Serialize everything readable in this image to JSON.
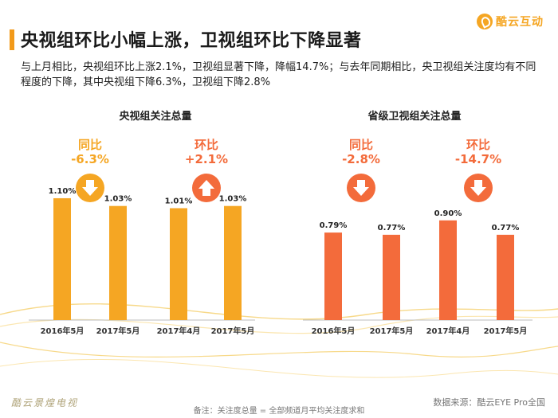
{
  "header": {
    "title": "央视组环比小幅上涨，卫视组环比下降显著",
    "brand": "酷云互动"
  },
  "subtitle": "与上月相比，央视组环比上涨2.1%，卫视组显著下降，降幅14.7%；与去年同期相比，央卫视组关注度均有不同程度的下降，其中央视组下降6.3%，卫视组下降2.8%",
  "panels": [
    {
      "title": "央视组关注总量",
      "changes": [
        {
          "label": "同比",
          "value": "-6.3%",
          "direction": "down",
          "icon": "down-arrow-icon",
          "color": "#f5a623"
        },
        {
          "label": "环比",
          "value": "+2.1%",
          "direction": "up",
          "icon": "up-arrow-icon",
          "color": "#f36b3b"
        }
      ]
    },
    {
      "title": "省级卫视组关注总量",
      "changes": [
        {
          "label": "同比",
          "value": "-2.8%",
          "direction": "down",
          "icon": "down-arrow-icon",
          "color": "#f36b3b"
        },
        {
          "label": "环比",
          "value": "-14.7%",
          "direction": "down",
          "icon": "down-arrow-icon",
          "color": "#f36b3b"
        }
      ]
    }
  ],
  "chart_data": [
    {
      "type": "bar",
      "title": "央视组关注总量",
      "categories": [
        "2016年5月",
        "2017年5月",
        "2017年4月",
        "2017年5月"
      ],
      "values": [
        1.1,
        1.03,
        1.01,
        1.03
      ],
      "labels": [
        "1.10%",
        "1.03%",
        "1.01%",
        "1.03%"
      ],
      "color": "#f5a623",
      "unit": "%",
      "ylim": [
        0,
        1.2
      ]
    },
    {
      "type": "bar",
      "title": "省级卫视组关注总量",
      "categories": [
        "2016年5月",
        "2017年5月",
        "2017年4月",
        "2017年5月"
      ],
      "values": [
        0.79,
        0.77,
        0.9,
        0.77
      ],
      "labels": [
        "0.79%",
        "0.77%",
        "0.90%",
        "0.77%"
      ],
      "color": "#f36b3b",
      "unit": "%",
      "ylim": [
        0,
        1.2
      ]
    }
  ],
  "footer": {
    "watermark": "酷云景煌电视",
    "source": "数据来源：酷云EYE Pro全国",
    "note": "备注：关注度总量 = 全部频道月平均关注度求和"
  }
}
